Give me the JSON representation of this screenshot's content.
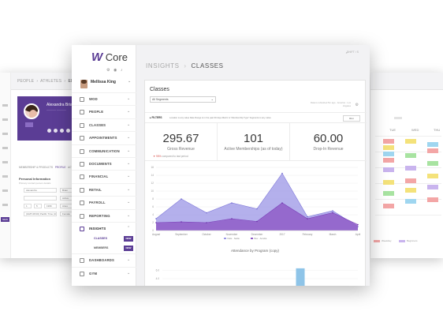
{
  "left_window": {
    "breadcrumb": [
      "PEOPLE",
      "ATHLETES",
      "EDIT V"
    ],
    "profile": {
      "name": "Alexandra Brian",
      "badge": ""
    },
    "tabs": [
      "MEMBERSHIP & PRODUCTS",
      "PROFILE",
      "ACTIV"
    ],
    "section_title": "Personal Information",
    "section_subtitle": "Primary contact person details",
    "fields": [
      "Alexandra",
      "Brian",
      "",
      "Active",
      "1",
      "5",
      "1996",
      "Aries",
      "(GMT-08:00) Pacific Time (US",
      "Female"
    ],
    "flag_label": "NEW"
  },
  "right_window": {
    "day_headers": [
      "TUE",
      "WED",
      "THU"
    ],
    "legend": [
      "Weekday",
      "Beginners"
    ]
  },
  "app": {
    "logo_letter": "W",
    "logo_text": "Core",
    "user_name": "Mellissa King",
    "header_search": "⌕",
    "header_shift": "SHIFT / S"
  },
  "sidebar": {
    "items": [
      {
        "label": "WOD"
      },
      {
        "label": "PEOPLE"
      },
      {
        "label": "CLASSES"
      },
      {
        "label": "APPOINTMENTS"
      },
      {
        "label": "COMMUNICATION"
      },
      {
        "label": "DOCUMENTS"
      },
      {
        "label": "FINANCIAL"
      },
      {
        "label": "RETAIL"
      },
      {
        "label": "PAYROLL"
      },
      {
        "label": "REPORTING"
      },
      {
        "label": "INSIGHTS"
      }
    ],
    "sub_items": [
      {
        "label": "CLASSES",
        "badge": "NEW"
      },
      {
        "label": "MEMBERS",
        "badge": "NEW"
      }
    ],
    "bottom_items": [
      {
        "label": "DASHBOARDS"
      },
      {
        "label": "GYM"
      }
    ]
  },
  "breadcrumb": {
    "parent": "INSIGHTS",
    "separator": "›",
    "current": "CLASSES"
  },
  "report": {
    "title": "Classes",
    "segment_select": "All Segments",
    "timezone_text": "Data is refreshed 5m ago · America · Los Angeles",
    "filters_label": "▸ FILTERS",
    "filters_text": "Location is any value   Date Range is in the past 90 days   Metric is \"Membership Type\"   Segments is any value",
    "run_label": "Run"
  },
  "kpis": [
    {
      "value": "295.67",
      "label": "Gross Revenue",
      "change_value": "▼ 95%",
      "change_text": "compared to last period"
    },
    {
      "value": "101",
      "label": "Active Memberships (as of today)"
    },
    {
      "value": "60.00",
      "label": "Drop-In Revenue"
    }
  ],
  "colors": {
    "brand": "#5b3d95",
    "series_a": "#9b96e6",
    "series_b": "#8d57c6",
    "bar": "#8ec4e8"
  },
  "chart_data": [
    {
      "type": "area",
      "title": "",
      "xlabel": "",
      "ylabel": "",
      "ylim": [
        0,
        16
      ],
      "y_ticks": [
        0,
        2,
        4,
        6,
        8,
        10,
        12,
        14,
        16
      ],
      "categories": [
        "August",
        "September",
        "October",
        "November",
        "December",
        "2017",
        "February",
        "March",
        "April"
      ],
      "series": [
        {
          "name": "Dale · Sadie",
          "values": [
            3,
            8,
            4.5,
            7,
            5.5,
            14.5,
            3.5,
            5,
            1
          ]
        },
        {
          "name": "Bev · Aurelia",
          "values": [
            2,
            2.2,
            2,
            3,
            2.3,
            7,
            3,
            4.5,
            1.5
          ]
        }
      ],
      "grid": true,
      "legend": "bottom"
    },
    {
      "type": "bar",
      "title": "Attendance by Program (copy)",
      "ylim": [
        0,
        8
      ],
      "y_ticks": [
        6.0,
        4.0,
        2.0
      ],
      "categories": [
        "",
        "",
        "",
        ""
      ],
      "values": [
        0,
        0,
        6.5,
        0
      ]
    }
  ]
}
